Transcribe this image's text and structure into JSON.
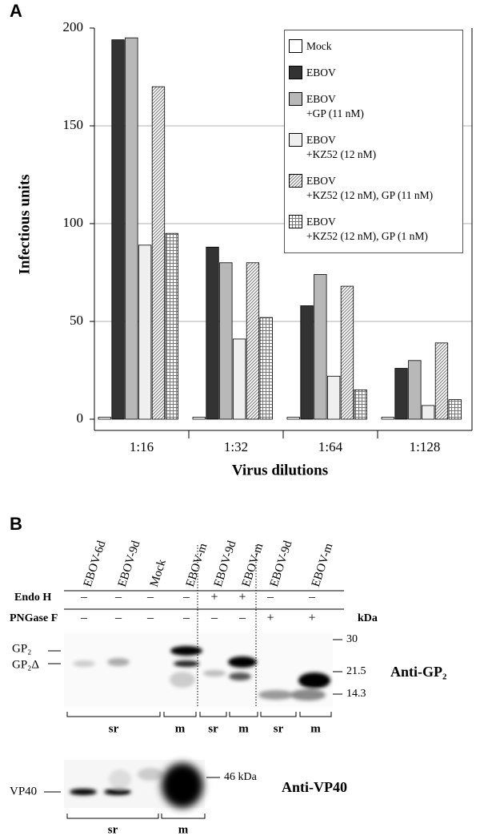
{
  "chart_data": {
    "type": "bar",
    "panel_label": "A",
    "y_label": "Infectious units",
    "x_label": "Virus dilutions",
    "categories": [
      "1:16",
      "1:32",
      "1:64",
      "1:128"
    ],
    "ylim": [
      0,
      200
    ],
    "yticks": [
      0,
      50,
      100,
      150,
      200
    ],
    "grid": true,
    "series": [
      {
        "name": "Mock",
        "color": "#ffffff",
        "pattern": "solid",
        "values": [
          1,
          1,
          1,
          1
        ]
      },
      {
        "name": "EBOV",
        "color": "#333333",
        "pattern": "solid",
        "values": [
          194,
          88,
          58,
          26
        ]
      },
      {
        "name": "EBOV\n+GP (11 nM)",
        "color": "#b8b8b8",
        "pattern": "solid",
        "values": [
          195,
          80,
          74,
          30
        ]
      },
      {
        "name": "EBOV\n+KZ52 (12 nM)",
        "color": "#efefef",
        "pattern": "solid",
        "values": [
          89,
          41,
          22,
          7
        ]
      },
      {
        "name": "EBOV\n+KZ52 (12 nM), GP (11 nM)",
        "color": "#777777",
        "pattern": "diagonal",
        "values": [
          170,
          80,
          68,
          39
        ]
      },
      {
        "name": "EBOV\n+KZ52 (12 nM), GP (1 nM)",
        "color": "#777777",
        "pattern": "grid",
        "values": [
          95,
          52,
          15,
          10
        ]
      }
    ]
  },
  "panel_b": {
    "panel_label": "B",
    "lanes": [
      "EBOV-6d",
      "EBOV-9d",
      "Mock",
      "EBOV-m",
      "EBOV-9d",
      "EBOV-m",
      "EBOV-9d",
      "EBOV-m"
    ],
    "treatments": [
      {
        "name": "Endo H",
        "signs": [
          "–",
          "–",
          "–",
          "–",
          "+",
          "+",
          "–",
          "–"
        ]
      },
      {
        "name": "PNGase F",
        "signs": [
          "–",
          "–",
          "–",
          "–",
          "–",
          "–",
          "+",
          "+"
        ]
      }
    ],
    "kda_label": "kDa",
    "markers": [
      "30",
      "21.5",
      "14.3"
    ],
    "band_labels": [
      "GP₂",
      "GP₂Δ"
    ],
    "blot1_label": "Anti-GP₂",
    "blot1_groups": [
      "sr",
      "m",
      "sr",
      "m",
      "sr",
      "m"
    ],
    "blot2_band_label": "VP40",
    "blot2_marker": "46 kDa",
    "blot2_label": "Anti-VP40",
    "blot2_groups": [
      "sr",
      "m"
    ]
  }
}
